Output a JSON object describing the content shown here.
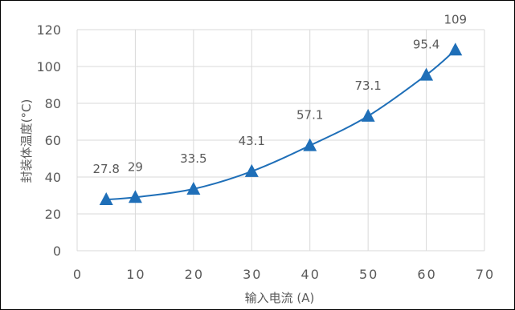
{
  "chart_data": {
    "type": "line",
    "title": "",
    "xlabel": "输入电流 (A)",
    "ylabel": "封装体温度(°C)",
    "xlim": [
      0,
      70
    ],
    "ylim": [
      0,
      120
    ],
    "xticks": [
      0,
      10,
      20,
      30,
      40,
      50,
      60,
      70
    ],
    "yticks": [
      0,
      20,
      40,
      60,
      80,
      100,
      120
    ],
    "grid": true,
    "legend": "none",
    "smooth": true,
    "marker": "triangle",
    "series": [
      {
        "x": [
          5,
          10,
          20,
          30,
          40,
          50,
          60,
          65
        ],
        "values": [
          27.8,
          29,
          33.5,
          43.1,
          57.1,
          73.1,
          95.4,
          109
        ],
        "labels": [
          "27.8",
          "29",
          "33.5",
          "43.1",
          "57.1",
          "73.1",
          "95.4",
          "109"
        ],
        "color": "#1f6fb8"
      }
    ],
    "colors": {
      "series": "#1f6fb8",
      "grid": "#d9d9d9",
      "text": "#595959"
    }
  }
}
